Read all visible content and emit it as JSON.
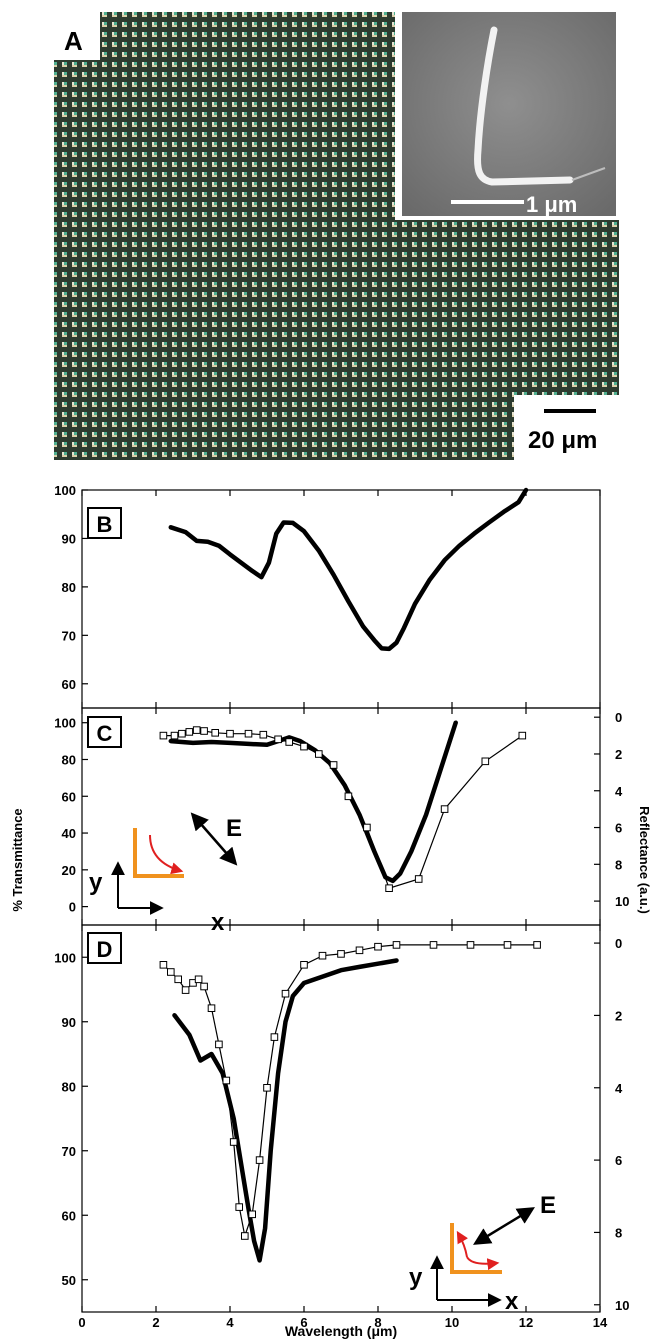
{
  "panel_a": {
    "label": "A",
    "inset_scale_label": "1 μm",
    "main_scale_label": "20 μm"
  },
  "axes": {
    "x_label": "Wavelength (μm)",
    "y_left_label": "% Transmittance",
    "y_right_label": "Reflectance (a.u.)",
    "x_ticks": [
      "0",
      "2",
      "4",
      "6",
      "8",
      "10",
      "12",
      "14"
    ]
  },
  "chart_data": [
    {
      "panel": "B",
      "type": "line",
      "xlim": [
        0,
        14
      ],
      "ylim": [
        55,
        100
      ],
      "y_ticks": [
        "60",
        "70",
        "80",
        "90",
        "100"
      ],
      "series": [
        {
          "axis": "left",
          "style": "thick",
          "x": [
            2.4,
            2.8,
            3.1,
            3.4,
            3.7,
            4.0,
            4.3,
            4.6,
            4.85,
            5.05,
            5.25,
            5.45,
            5.7,
            6.0,
            6.4,
            6.8,
            7.2,
            7.6,
            7.9,
            8.1,
            8.3,
            8.5,
            8.7,
            9.0,
            9.4,
            9.8,
            10.2,
            10.6,
            11.0,
            11.4,
            11.8,
            12.0
          ],
          "values": [
            92.3,
            91.3,
            89.5,
            89.3,
            88.5,
            86.7,
            85.0,
            83.3,
            82.0,
            85.0,
            91.0,
            93.3,
            93.2,
            91.5,
            87.5,
            82.5,
            77.0,
            71.8,
            69.0,
            67.3,
            67.2,
            68.5,
            71.5,
            76.5,
            81.5,
            85.5,
            88.5,
            91.0,
            93.3,
            95.5,
            97.5,
            100.0
          ]
        }
      ]
    },
    {
      "panel": "C",
      "type": "line",
      "xlim": [
        0,
        14
      ],
      "ylim": [
        -10,
        108
      ],
      "y_ticks": [
        "0",
        "20",
        "40",
        "60",
        "80",
        "100"
      ],
      "y2_ticks": [
        "0",
        "2",
        "4",
        "6",
        "8",
        "10"
      ],
      "y2lim": [
        -0.5,
        11.3
      ],
      "annotation": {
        "field_label": "E",
        "x_axis_label": "x",
        "y_axis_label": "y"
      },
      "series": [
        {
          "axis": "left",
          "style": "thick",
          "x": [
            2.4,
            3.0,
            3.5,
            4.0,
            4.5,
            5.0,
            5.3,
            5.6,
            5.9,
            6.3,
            6.7,
            7.1,
            7.5,
            7.9,
            8.2,
            8.4,
            8.6,
            8.9,
            9.3,
            9.7,
            10.1
          ],
          "values": [
            90,
            89,
            89.5,
            89,
            88.5,
            88,
            90,
            92,
            90,
            85,
            78,
            66,
            50,
            30,
            16,
            14,
            18,
            30,
            50,
            75,
            100
          ]
        },
        {
          "axis": "right",
          "style": "open-square",
          "x": [
            2.2,
            2.5,
            2.7,
            2.9,
            3.1,
            3.3,
            3.6,
            4.0,
            4.5,
            4.9,
            5.3,
            5.6,
            6.0,
            6.4,
            6.8,
            7.2,
            7.7,
            8.3,
            9.1,
            9.8,
            10.9,
            11.9
          ],
          "values": [
            1.0,
            1.0,
            0.9,
            0.8,
            0.7,
            0.75,
            0.85,
            0.9,
            0.9,
            0.95,
            1.2,
            1.35,
            1.6,
            2.0,
            2.6,
            4.3,
            6.0,
            9.3,
            8.8,
            5.0,
            2.4,
            1.0
          ]
        }
      ]
    },
    {
      "panel": "D",
      "type": "line",
      "xlim": [
        0,
        14
      ],
      "ylim": [
        45,
        105
      ],
      "y_ticks": [
        "50",
        "60",
        "70",
        "80",
        "90",
        "100"
      ],
      "y2_ticks": [
        "0",
        "2",
        "4",
        "6",
        "8",
        "10"
      ],
      "y2lim": [
        -0.5,
        10.2
      ],
      "annotation": {
        "field_label": "E",
        "x_axis_label": "x",
        "y_axis_label": "y"
      },
      "series": [
        {
          "axis": "left",
          "style": "thick",
          "x": [
            2.5,
            2.9,
            3.2,
            3.5,
            3.8,
            4.1,
            4.3,
            4.5,
            4.65,
            4.8,
            4.95,
            5.1,
            5.3,
            5.5,
            5.7,
            6.0,
            6.5,
            7.0,
            7.5,
            8.0,
            8.5
          ],
          "values": [
            91,
            88,
            84,
            85,
            82,
            75,
            68,
            61,
            56,
            53,
            58,
            70,
            82,
            90,
            94,
            96,
            97,
            98,
            98.5,
            99,
            99.5
          ]
        },
        {
          "axis": "right",
          "style": "open-square",
          "x": [
            2.2,
            2.4,
            2.6,
            2.8,
            3.0,
            3.15,
            3.3,
            3.5,
            3.7,
            3.9,
            4.1,
            4.25,
            4.4,
            4.6,
            4.8,
            5.0,
            5.2,
            5.5,
            6.0,
            6.5,
            7.0,
            7.5,
            8.0,
            8.5,
            9.5,
            10.5,
            11.5,
            12.3
          ],
          "values": [
            0.6,
            0.8,
            1.0,
            1.3,
            1.1,
            1.0,
            1.2,
            1.8,
            2.8,
            3.8,
            5.5,
            7.3,
            8.1,
            7.5,
            6.0,
            4.0,
            2.6,
            1.4,
            0.6,
            0.35,
            0.3,
            0.2,
            0.1,
            0.05,
            0.05,
            0.05,
            0.05,
            0.05
          ]
        }
      ]
    }
  ]
}
